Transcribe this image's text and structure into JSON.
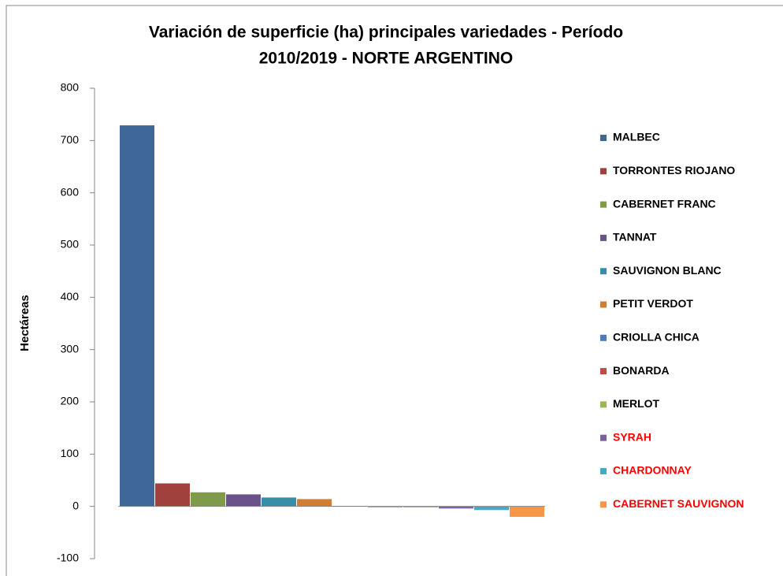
{
  "chart_data": {
    "type": "bar",
    "title": [
      "Variación de superficie (ha) principales variedades  - Período",
      "2010/2019 - NORTE ARGENTINO"
    ],
    "y_label": "Hectáreas",
    "ylim": [
      -100,
      800
    ],
    "yticks": [
      -100,
      0,
      100,
      200,
      300,
      400,
      500,
      600,
      700,
      800
    ],
    "series": [
      {
        "name": "MALBEC",
        "color": "#3f6797",
        "legend_text_color": "#000000",
        "values": [
          729
        ]
      },
      {
        "name": "TORRONTES RIOJANO",
        "color": "#a0413e",
        "legend_text_color": "#000000",
        "values": [
          44
        ]
      },
      {
        "name": "CABERNET FRANC",
        "color": "#7f9a48",
        "legend_text_color": "#000000",
        "values": [
          27
        ]
      },
      {
        "name": "TANNAT",
        "color": "#6a538a",
        "legend_text_color": "#000000",
        "values": [
          23
        ]
      },
      {
        "name": "SAUVIGNON BLANC",
        "color": "#378ea9",
        "legend_text_color": "#000000",
        "values": [
          17
        ]
      },
      {
        "name": "PETIT VERDOT",
        "color": "#d07e34",
        "legend_text_color": "#000000",
        "values": [
          14
        ]
      },
      {
        "name": "CRIOLLA CHICA",
        "color": "#4a7ebb",
        "legend_text_color": "#000000",
        "values": [
          1
        ]
      },
      {
        "name": "BONARDA",
        "color": "#be4b48",
        "legend_text_color": "#000000",
        "values": [
          -1
        ]
      },
      {
        "name": "MERLOT",
        "color": "#98b954",
        "legend_text_color": "#000000",
        "values": [
          -2
        ]
      },
      {
        "name": "SYRAH",
        "color": "#7d60a0",
        "legend_text_color": "#ff0000",
        "values": [
          -4
        ]
      },
      {
        "name": "CHARDONNAY",
        "color": "#46aac5",
        "legend_text_color": "#ff0000",
        "values": [
          -7
        ]
      },
      {
        "name": "CABERNET SAUVIGNON",
        "color": "#f79646",
        "legend_text_color": "#ff0000",
        "values": [
          -20
        ]
      }
    ]
  }
}
